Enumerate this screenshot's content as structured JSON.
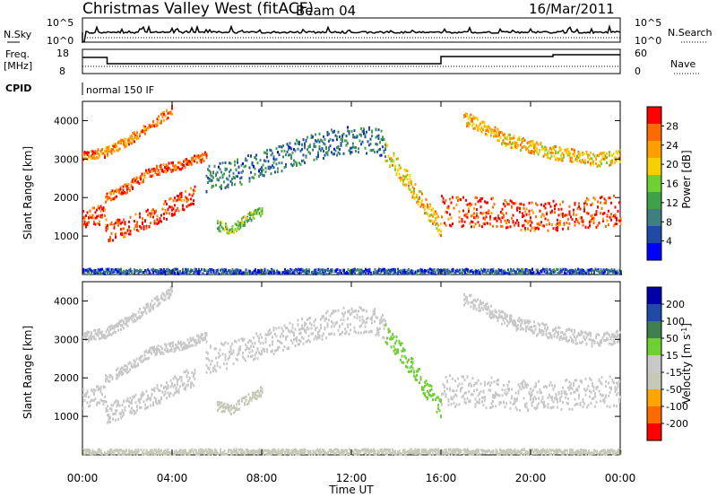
{
  "header": {
    "title": "Christmas Valley West (fitACF)",
    "beam": "Beam 04",
    "date": "16/Mar/2011"
  },
  "top_panels": {
    "nsky_label": "N.Sky",
    "nsearch_label": "N.Search",
    "freq_label": "Freq.",
    "freq_unit": "[MHz]",
    "nave_label": "Nave",
    "cpid_label": "CPID",
    "cpid_value": "normal 150 IF",
    "nsky_ticks": [
      "10^5",
      "10^0"
    ],
    "nsearch_ticks": [
      "10^5",
      "10^0"
    ],
    "freq_ticks": [
      "18",
      "8"
    ],
    "nave_ticks": [
      "60",
      "0"
    ]
  },
  "colors": {
    "power": [
      "#0000ff",
      "#1f4aa6",
      "#3f7f7f",
      "#3fa14a",
      "#6fcf33",
      "#f5d000",
      "#ffa000",
      "#ff6a00",
      "#ff0000"
    ],
    "velocity": [
      "#ff0000",
      "#ff6a00",
      "#ffa500",
      "#c8c8b8",
      "#c8c8c8",
      "#6fcf33",
      "#3f7f50",
      "#1f4aa6",
      "#0000aa"
    ]
  },
  "chart_data": [
    {
      "type": "heatmap",
      "name": "power",
      "xlabel": "",
      "ylabel": "Slant Range [km]",
      "ylim": [
        0,
        4500
      ],
      "y_ticks": [
        1000,
        2000,
        3000,
        4000
      ],
      "colorbar_label": "Power [dB]",
      "colorbar_ticks": [
        "28",
        "24",
        "20",
        "16",
        "12",
        "8",
        "4"
      ],
      "colorbar_range": [
        0,
        30
      ],
      "bands": [
        {
          "x": [
            0.0,
            1.0,
            1.05,
            2.0,
            3.0,
            4.0,
            5.0
          ],
          "y": [
            1500,
            1600,
            1100,
            1300,
            1500,
            1800,
            2100
          ],
          "thickness": 500,
          "level": 27
        },
        {
          "x": [
            0.0,
            1.0,
            2.0,
            3.0,
            4.0
          ],
          "y": [
            3100,
            3200,
            3500,
            3900,
            4300
          ],
          "thickness": 250,
          "level": 24
        },
        {
          "x": [
            1.0,
            2.0,
            3.0,
            4.5,
            5.5
          ],
          "y": [
            2000,
            2300,
            2700,
            2900,
            3100
          ],
          "thickness": 250,
          "level": 26
        },
        {
          "x": [
            5.5,
            7.0,
            8.5,
            10.0,
            11.5,
            12.5,
            13.5
          ],
          "y": [
            2500,
            2700,
            3000,
            3300,
            3500,
            3550,
            3400
          ],
          "thickness": 700,
          "level": 8
        },
        {
          "x": [
            13.5,
            14.2,
            14.8,
            15.5,
            16.0
          ],
          "y": [
            3200,
            2700,
            2200,
            1600,
            1200
          ],
          "thickness": 500,
          "level": 20
        },
        {
          "x": [
            16.0,
            18.0,
            20.0,
            22.0,
            24.0
          ],
          "y": [
            1700,
            1650,
            1550,
            1600,
            1700
          ],
          "thickness": 800,
          "level": 27
        },
        {
          "x": [
            17.0,
            19.0,
            21.0,
            23.0,
            24.0
          ],
          "y": [
            4100,
            3500,
            3200,
            3000,
            3100
          ],
          "thickness": 350,
          "level": 20
        },
        {
          "x": [
            6.0,
            6.6,
            7.4,
            8.0
          ],
          "y": [
            1300,
            1200,
            1500,
            1700
          ],
          "thickness": 250,
          "level": 14
        },
        {
          "x": [
            0.0,
            24.0
          ],
          "y": [
            100,
            100
          ],
          "thickness": 150,
          "level": 6
        }
      ]
    },
    {
      "type": "heatmap",
      "name": "velocity",
      "xlabel": "Time UT",
      "ylabel": "Slant Range [km]",
      "ylim": [
        0,
        4500
      ],
      "y_ticks": [
        1000,
        2000,
        3000,
        4000
      ],
      "x_ticks": [
        "00:00",
        "04:00",
        "08:00",
        "12:00",
        "16:00",
        "20:00",
        "00:00"
      ],
      "x_range_hours": [
        0,
        24
      ],
      "colorbar_label": "Velocity [m s^-1]",
      "colorbar_ticks": [
        "200",
        "100",
        "50",
        "15",
        "-15",
        "-50",
        "-100",
        "-200"
      ],
      "colorbar_range": [
        -250,
        250
      ],
      "bands": [
        {
          "x": [
            0.0,
            1.0,
            1.05,
            2.0,
            3.0,
            4.0,
            5.0
          ],
          "y": [
            1500,
            1600,
            1100,
            1300,
            1500,
            1800,
            2100
          ],
          "thickness": 500,
          "level": 0
        },
        {
          "x": [
            0.0,
            1.0,
            2.0,
            3.0,
            4.0
          ],
          "y": [
            3100,
            3200,
            3500,
            3900,
            4300
          ],
          "thickness": 250,
          "level": 0
        },
        {
          "x": [
            1.0,
            2.0,
            3.0,
            4.5,
            5.5
          ],
          "y": [
            2000,
            2300,
            2700,
            2900,
            3100
          ],
          "thickness": 250,
          "level": 0
        },
        {
          "x": [
            5.5,
            7.0,
            8.5,
            10.0,
            11.5,
            12.5,
            13.5
          ],
          "y": [
            2500,
            2700,
            3000,
            3300,
            3500,
            3550,
            3400
          ],
          "thickness": 700,
          "level": -20
        },
        {
          "x": [
            13.5,
            14.2,
            14.8,
            15.5,
            16.0
          ],
          "y": [
            3200,
            2700,
            2200,
            1600,
            1200
          ],
          "thickness": 500,
          "level": 40
        },
        {
          "x": [
            16.0,
            18.0,
            20.0,
            22.0,
            24.0
          ],
          "y": [
            1700,
            1650,
            1550,
            1600,
            1700
          ],
          "thickness": 800,
          "level": 0
        },
        {
          "x": [
            17.0,
            19.0,
            21.0,
            23.0,
            24.0
          ],
          "y": [
            4100,
            3500,
            3200,
            3000,
            3100
          ],
          "thickness": 350,
          "level": 0
        },
        {
          "x": [
            6.0,
            6.6,
            7.4,
            8.0
          ],
          "y": [
            1300,
            1200,
            1500,
            1700
          ],
          "thickness": 250,
          "level": -60
        },
        {
          "x": [
            0.0,
            24.0
          ],
          "y": [
            100,
            100
          ],
          "thickness": 150,
          "level": -70
        }
      ]
    }
  ]
}
